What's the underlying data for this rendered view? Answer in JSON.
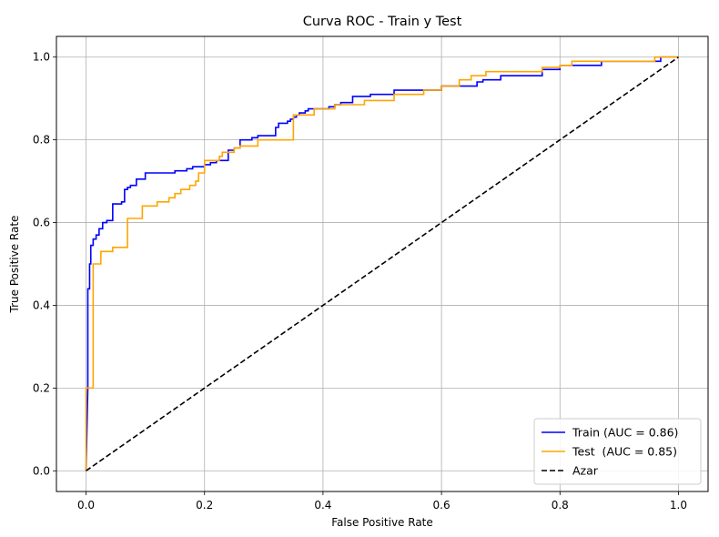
{
  "chart_data": {
    "type": "line",
    "title": "Curva ROC - Train y Test",
    "xlabel": "False Positive Rate",
    "ylabel": "True Positive Rate",
    "xlim": [
      -0.05,
      1.05
    ],
    "ylim": [
      -0.05,
      1.05
    ],
    "xticks": [
      0.0,
      0.2,
      0.4,
      0.6,
      0.8,
      1.0
    ],
    "xtick_labels": [
      "0.0",
      "0.2",
      "0.4",
      "0.6",
      "0.8",
      "1.0"
    ],
    "yticks": [
      0.0,
      0.2,
      0.4,
      0.6,
      0.8,
      1.0
    ],
    "ytick_labels": [
      "0.0",
      "0.2",
      "0.4",
      "0.6",
      "0.8",
      "1.0"
    ],
    "grid": true,
    "legend": "lower-right",
    "series": [
      {
        "name": "Train (AUC = 0.86)",
        "color": "#0000ff",
        "style": "solid",
        "x": [
          0.0,
          0.003,
          0.003,
          0.006,
          0.006,
          0.008,
          0.008,
          0.012,
          0.012,
          0.017,
          0.017,
          0.022,
          0.022,
          0.028,
          0.028,
          0.035,
          0.035,
          0.045,
          0.045,
          0.06,
          0.06,
          0.065,
          0.065,
          0.07,
          0.07,
          0.075,
          0.075,
          0.085,
          0.085,
          0.1,
          0.1,
          0.15,
          0.15,
          0.17,
          0.17,
          0.18,
          0.18,
          0.2,
          0.2,
          0.21,
          0.21,
          0.22,
          0.22,
          0.24,
          0.24,
          0.25,
          0.25,
          0.26,
          0.26,
          0.28,
          0.28,
          0.29,
          0.29,
          0.32,
          0.32,
          0.325,
          0.325,
          0.34,
          0.34,
          0.345,
          0.345,
          0.35,
          0.35,
          0.355,
          0.355,
          0.36,
          0.36,
          0.37,
          0.37,
          0.375,
          0.375,
          0.41,
          0.41,
          0.42,
          0.42,
          0.43,
          0.43,
          0.45,
          0.45,
          0.48,
          0.48,
          0.52,
          0.52,
          0.6,
          0.6,
          0.66,
          0.66,
          0.67,
          0.67,
          0.7,
          0.7,
          0.77,
          0.77,
          0.8,
          0.8,
          0.87,
          0.87,
          0.97,
          0.97,
          1.0
        ],
        "y": [
          0.0,
          0.2,
          0.44,
          0.44,
          0.5,
          0.5,
          0.545,
          0.545,
          0.56,
          0.56,
          0.57,
          0.57,
          0.585,
          0.585,
          0.6,
          0.6,
          0.605,
          0.605,
          0.645,
          0.645,
          0.65,
          0.65,
          0.68,
          0.68,
          0.685,
          0.685,
          0.69,
          0.69,
          0.705,
          0.705,
          0.72,
          0.72,
          0.725,
          0.725,
          0.73,
          0.73,
          0.735,
          0.735,
          0.74,
          0.74,
          0.745,
          0.745,
          0.75,
          0.75,
          0.775,
          0.775,
          0.78,
          0.78,
          0.8,
          0.8,
          0.805,
          0.805,
          0.81,
          0.81,
          0.83,
          0.83,
          0.84,
          0.84,
          0.845,
          0.845,
          0.85,
          0.85,
          0.855,
          0.855,
          0.86,
          0.86,
          0.865,
          0.865,
          0.87,
          0.87,
          0.875,
          0.875,
          0.88,
          0.88,
          0.885,
          0.885,
          0.89,
          0.89,
          0.905,
          0.905,
          0.91,
          0.91,
          0.92,
          0.92,
          0.93,
          0.93,
          0.94,
          0.94,
          0.945,
          0.945,
          0.955,
          0.955,
          0.97,
          0.97,
          0.98,
          0.98,
          0.99,
          0.99,
          1.0,
          1.0
        ]
      },
      {
        "name": "Test  (AUC = 0.85)",
        "color": "#ffa500",
        "style": "solid",
        "x": [
          0.0,
          0.0,
          0.012,
          0.012,
          0.025,
          0.025,
          0.045,
          0.045,
          0.07,
          0.07,
          0.095,
          0.095,
          0.12,
          0.12,
          0.14,
          0.14,
          0.15,
          0.15,
          0.16,
          0.16,
          0.175,
          0.175,
          0.185,
          0.185,
          0.19,
          0.19,
          0.2,
          0.2,
          0.225,
          0.225,
          0.23,
          0.23,
          0.25,
          0.25,
          0.26,
          0.26,
          0.29,
          0.29,
          0.35,
          0.35,
          0.385,
          0.385,
          0.42,
          0.42,
          0.47,
          0.47,
          0.52,
          0.52,
          0.57,
          0.57,
          0.6,
          0.6,
          0.63,
          0.63,
          0.65,
          0.65,
          0.675,
          0.675,
          0.77,
          0.77,
          0.8,
          0.8,
          0.82,
          0.82,
          0.96,
          0.96,
          1.0
        ],
        "y": [
          0.0,
          0.2,
          0.2,
          0.5,
          0.5,
          0.53,
          0.53,
          0.54,
          0.54,
          0.61,
          0.61,
          0.64,
          0.64,
          0.65,
          0.65,
          0.66,
          0.66,
          0.67,
          0.67,
          0.68,
          0.68,
          0.69,
          0.69,
          0.7,
          0.7,
          0.72,
          0.72,
          0.75,
          0.75,
          0.76,
          0.76,
          0.77,
          0.77,
          0.78,
          0.78,
          0.785,
          0.785,
          0.8,
          0.8,
          0.86,
          0.86,
          0.875,
          0.875,
          0.885,
          0.885,
          0.895,
          0.895,
          0.91,
          0.91,
          0.92,
          0.92,
          0.93,
          0.93,
          0.945,
          0.945,
          0.955,
          0.955,
          0.965,
          0.965,
          0.975,
          0.975,
          0.98,
          0.98,
          0.99,
          0.99,
          1.0,
          1.0
        ]
      },
      {
        "name": "Azar",
        "color": "#000000",
        "style": "dashed",
        "x": [
          0.0,
          1.0
        ],
        "y": [
          0.0,
          1.0
        ]
      }
    ]
  }
}
